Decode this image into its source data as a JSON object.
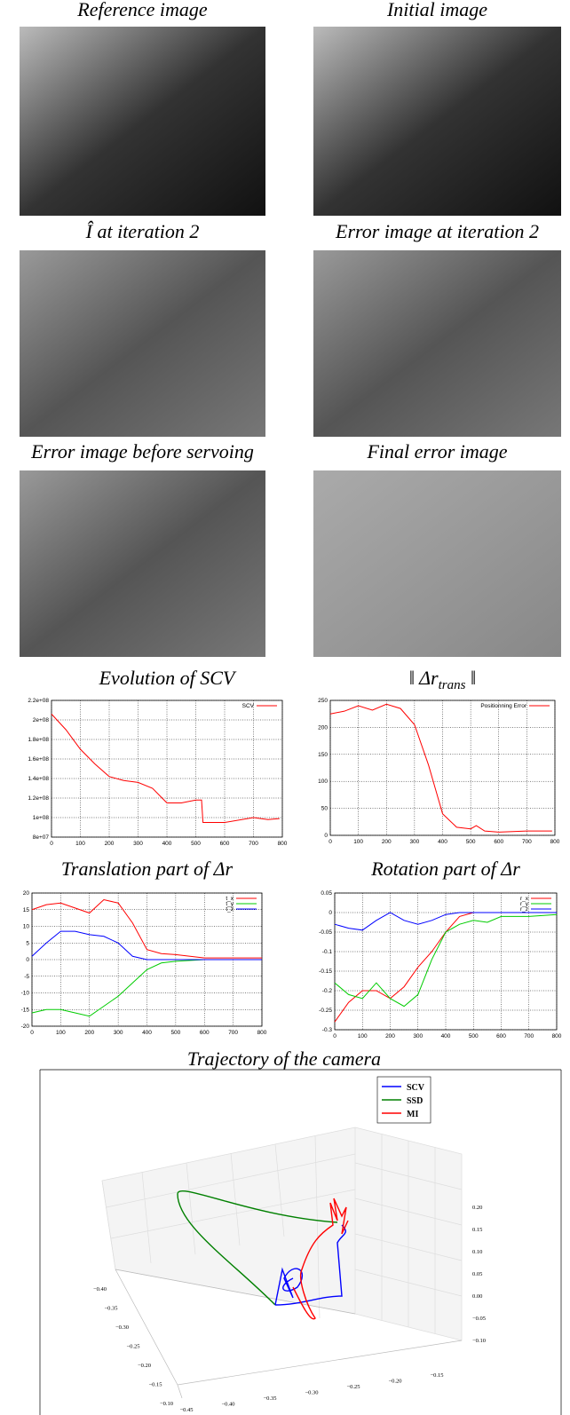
{
  "images": [
    {
      "title": "Reference image"
    },
    {
      "title": "Initial image"
    },
    {
      "title": "Î at iteration 2"
    },
    {
      "title": "Error image at iteration 2"
    },
    {
      "title": "Error image before servoing"
    },
    {
      "title": "Final error image"
    }
  ],
  "chart_data": [
    {
      "type": "line",
      "title": "Evolution of SCV",
      "xlim": [
        0,
        800
      ],
      "xticks": [
        0,
        100,
        200,
        300,
        400,
        500,
        600,
        700,
        800
      ],
      "ylim": [
        80000000,
        220000000
      ],
      "yticks": [
        {
          "value": 80000000,
          "label": "8e+07"
        },
        {
          "value": 100000000,
          "label": "1e+08"
        },
        {
          "value": 120000000,
          "label": "1.2e+08"
        },
        {
          "value": 140000000,
          "label": "1.4e+08"
        },
        {
          "value": 160000000,
          "label": "1.6e+08"
        },
        {
          "value": 180000000,
          "label": "1.8e+08"
        },
        {
          "value": 200000000,
          "label": "2e+08"
        },
        {
          "value": 220000000,
          "label": "2.2e+08"
        }
      ],
      "grid": true,
      "legend": "upper right",
      "x": [
        0,
        50,
        100,
        150,
        200,
        250,
        300,
        350,
        400,
        450,
        500,
        520,
        525,
        600,
        700,
        750,
        790
      ],
      "series": [
        {
          "name": "SCV",
          "color": "#ff0000",
          "values": [
            206000000,
            190000000,
            170000000,
            155000000,
            142000000,
            138000000,
            136000000,
            130000000,
            115000000,
            115000000,
            118000000,
            118000000,
            95000000,
            95000000,
            100000000,
            98000000,
            99000000
          ]
        }
      ]
    },
    {
      "type": "line",
      "title": "‖ Δr",
      "title_sub": "trans",
      "title_end": " ‖",
      "xlim": [
        0,
        800
      ],
      "xticks": [
        0,
        100,
        200,
        300,
        400,
        500,
        600,
        700,
        800
      ],
      "ylim": [
        0,
        250
      ],
      "yticks": [
        0,
        50,
        100,
        150,
        200,
        250
      ],
      "grid": true,
      "legend": "upper right",
      "x": [
        0,
        50,
        100,
        150,
        200,
        250,
        300,
        350,
        400,
        450,
        500,
        520,
        550,
        600,
        700,
        790
      ],
      "series": [
        {
          "name": "Positionning Error",
          "color": "#ff0000",
          "values": [
            225,
            230,
            240,
            232,
            243,
            235,
            205,
            130,
            40,
            15,
            12,
            18,
            8,
            6,
            8,
            8
          ]
        }
      ]
    },
    {
      "type": "line",
      "title": "Translation part of Δr",
      "xlim": [
        0,
        800
      ],
      "xticks": [
        0,
        100,
        200,
        300,
        400,
        500,
        600,
        700,
        800
      ],
      "ylim": [
        -20,
        20
      ],
      "yticks": [
        -20,
        -15,
        -10,
        -5,
        0,
        5,
        10,
        15,
        20
      ],
      "grid": true,
      "legend": "upper right",
      "x": [
        0,
        50,
        100,
        150,
        200,
        250,
        300,
        350,
        400,
        450,
        500,
        600,
        700,
        800
      ],
      "series": [
        {
          "name": "t_x",
          "color": "#ff0000",
          "values": [
            15,
            16.5,
            17,
            15.5,
            14,
            18,
            17,
            11,
            3,
            1.8,
            1.5,
            0.5,
            0.5,
            0.5
          ]
        },
        {
          "name": "t_y",
          "color": "#00cc00",
          "values": [
            -16,
            -15,
            -15,
            -16,
            -17,
            -14,
            -11,
            -7,
            -3,
            -1,
            -0.5,
            0,
            0,
            0
          ]
        },
        {
          "name": "t_z",
          "color": "#0000ff",
          "values": [
            1,
            5,
            8.5,
            8.5,
            7.5,
            7,
            5,
            1,
            0,
            0,
            0,
            0,
            0,
            0
          ]
        }
      ]
    },
    {
      "type": "line",
      "title": "Rotation part of Δr",
      "xlim": [
        0,
        800
      ],
      "xticks": [
        0,
        100,
        200,
        300,
        400,
        500,
        600,
        700,
        800
      ],
      "ylim": [
        -0.3,
        0.05
      ],
      "yticks": [
        -0.3,
        -0.25,
        -0.2,
        -0.15,
        -0.1,
        -0.05,
        0,
        0.05
      ],
      "grid": true,
      "legend": "upper right",
      "x": [
        0,
        50,
        100,
        150,
        200,
        250,
        300,
        350,
        400,
        450,
        500,
        550,
        600,
        700,
        800
      ],
      "series": [
        {
          "name": "r_x",
          "color": "#ff0000",
          "values": [
            -0.28,
            -0.23,
            -0.2,
            -0.2,
            -0.22,
            -0.19,
            -0.14,
            -0.1,
            -0.05,
            -0.01,
            0,
            0,
            0,
            0,
            0
          ]
        },
        {
          "name": "r_y",
          "color": "#00cc00",
          "values": [
            -0.18,
            -0.21,
            -0.22,
            -0.18,
            -0.22,
            -0.24,
            -0.21,
            -0.12,
            -0.05,
            -0.03,
            -0.02,
            -0.025,
            -0.01,
            -0.01,
            -0.005
          ]
        },
        {
          "name": "r_z",
          "color": "#0000ff",
          "values": [
            -0.03,
            -0.04,
            -0.045,
            -0.02,
            0,
            -0.02,
            -0.03,
            -0.02,
            -0.005,
            0,
            0,
            0,
            0,
            0,
            0
          ]
        }
      ]
    },
    {
      "type": "trajectory3d",
      "title": "Trajectory of the camera",
      "series": [
        {
          "name": "SCV",
          "color": "#0000ff"
        },
        {
          "name": "SSD",
          "color": "#008000"
        },
        {
          "name": "MI",
          "color": "#ff0000"
        }
      ],
      "xticks": [
        "−0.40",
        "−0.35",
        "−0.30",
        "−0.25",
        "−0.20",
        "−0.15",
        "−0.10"
      ],
      "yticks": [
        "−0.45",
        "−0.40",
        "−0.35",
        "−0.30",
        "−0.25",
        "−0.20",
        "−0.15"
      ],
      "zticks": [
        "0.20",
        "0.15",
        "0.10",
        "0.05",
        "0.00",
        "−0.05",
        "−0.10"
      ]
    }
  ]
}
